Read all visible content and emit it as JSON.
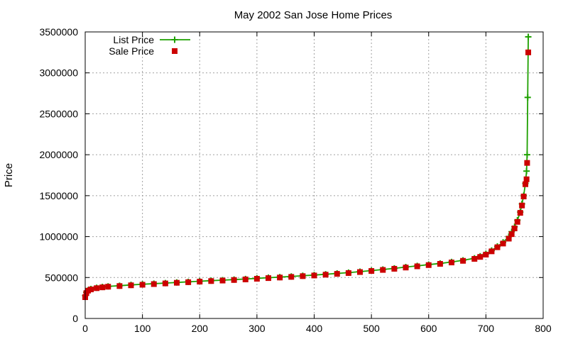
{
  "chart_data": {
    "type": "scatter",
    "title": "May 2002 San Jose Home Prices",
    "xlabel": "",
    "ylabel": "Price",
    "xlim": [
      0,
      800
    ],
    "ylim": [
      0,
      3500000
    ],
    "x_ticks": [
      "0",
      "100",
      "200",
      "300",
      "400",
      "500",
      "600",
      "700",
      "800"
    ],
    "y_ticks": [
      "0",
      "500000",
      "1000000",
      "1500000",
      "2000000",
      "2500000",
      "3000000",
      "3500000"
    ],
    "grid": true,
    "legend_position": "top-left",
    "series": [
      {
        "name": "List Price",
        "style": "linespoints",
        "marker": "plus",
        "color": "#1ea000",
        "points": [
          [
            0,
            280000
          ],
          [
            2,
            320000
          ],
          [
            5,
            345000
          ],
          [
            10,
            360000
          ],
          [
            20,
            375000
          ],
          [
            30,
            385000
          ],
          [
            40,
            392000
          ],
          [
            60,
            400000
          ],
          [
            80,
            410000
          ],
          [
            100,
            418000
          ],
          [
            120,
            425000
          ],
          [
            140,
            432000
          ],
          [
            160,
            440000
          ],
          [
            180,
            447000
          ],
          [
            200,
            455000
          ],
          [
            220,
            462000
          ],
          [
            240,
            468000
          ],
          [
            260,
            475000
          ],
          [
            280,
            482000
          ],
          [
            300,
            490000
          ],
          [
            320,
            498000
          ],
          [
            340,
            505000
          ],
          [
            360,
            513000
          ],
          [
            380,
            522000
          ],
          [
            400,
            530000
          ],
          [
            420,
            540000
          ],
          [
            440,
            550000
          ],
          [
            460,
            560000
          ],
          [
            480,
            572000
          ],
          [
            500,
            585000
          ],
          [
            520,
            598000
          ],
          [
            540,
            612000
          ],
          [
            560,
            628000
          ],
          [
            580,
            642000
          ],
          [
            600,
            658000
          ],
          [
            620,
            672000
          ],
          [
            640,
            690000
          ],
          [
            660,
            710000
          ],
          [
            680,
            735000
          ],
          [
            690,
            760000
          ],
          [
            700,
            790000
          ],
          [
            710,
            830000
          ],
          [
            720,
            880000
          ],
          [
            730,
            930000
          ],
          [
            740,
            1000000
          ],
          [
            745,
            1060000
          ],
          [
            750,
            1120000
          ],
          [
            755,
            1200000
          ],
          [
            760,
            1300000
          ],
          [
            763,
            1400000
          ],
          [
            766,
            1500000
          ],
          [
            769,
            1650000
          ],
          [
            771,
            1800000
          ],
          [
            772,
            2000000
          ],
          [
            773,
            2700000
          ],
          [
            774,
            3440000
          ]
        ]
      },
      {
        "name": "Sale Price",
        "style": "points",
        "marker": "square",
        "color": "#cc0000",
        "points": [
          [
            0,
            260000
          ],
          [
            2,
            310000
          ],
          [
            5,
            340000
          ],
          [
            10,
            355000
          ],
          [
            20,
            370000
          ],
          [
            30,
            380000
          ],
          [
            40,
            388000
          ],
          [
            60,
            396000
          ],
          [
            80,
            405000
          ],
          [
            100,
            412000
          ],
          [
            120,
            420000
          ],
          [
            140,
            428000
          ],
          [
            160,
            436000
          ],
          [
            180,
            443000
          ],
          [
            200,
            450000
          ],
          [
            220,
            457000
          ],
          [
            240,
            463000
          ],
          [
            260,
            470000
          ],
          [
            280,
            477000
          ],
          [
            300,
            485000
          ],
          [
            320,
            493000
          ],
          [
            340,
            500000
          ],
          [
            360,
            508000
          ],
          [
            380,
            517000
          ],
          [
            400,
            525000
          ],
          [
            420,
            535000
          ],
          [
            440,
            545000
          ],
          [
            460,
            555000
          ],
          [
            480,
            567000
          ],
          [
            500,
            580000
          ],
          [
            520,
            593000
          ],
          [
            540,
            607000
          ],
          [
            560,
            622000
          ],
          [
            580,
            637000
          ],
          [
            600,
            652000
          ],
          [
            620,
            667000
          ],
          [
            640,
            684000
          ],
          [
            660,
            704000
          ],
          [
            680,
            728000
          ],
          [
            690,
            752000
          ],
          [
            700,
            780000
          ],
          [
            710,
            820000
          ],
          [
            720,
            870000
          ],
          [
            730,
            915000
          ],
          [
            740,
            975000
          ],
          [
            745,
            1030000
          ],
          [
            750,
            1100000
          ],
          [
            755,
            1180000
          ],
          [
            760,
            1290000
          ],
          [
            763,
            1380000
          ],
          [
            766,
            1490000
          ],
          [
            769,
            1640000
          ],
          [
            771,
            1700000
          ],
          [
            772,
            1900000
          ],
          [
            774,
            3250000
          ]
        ]
      }
    ]
  }
}
